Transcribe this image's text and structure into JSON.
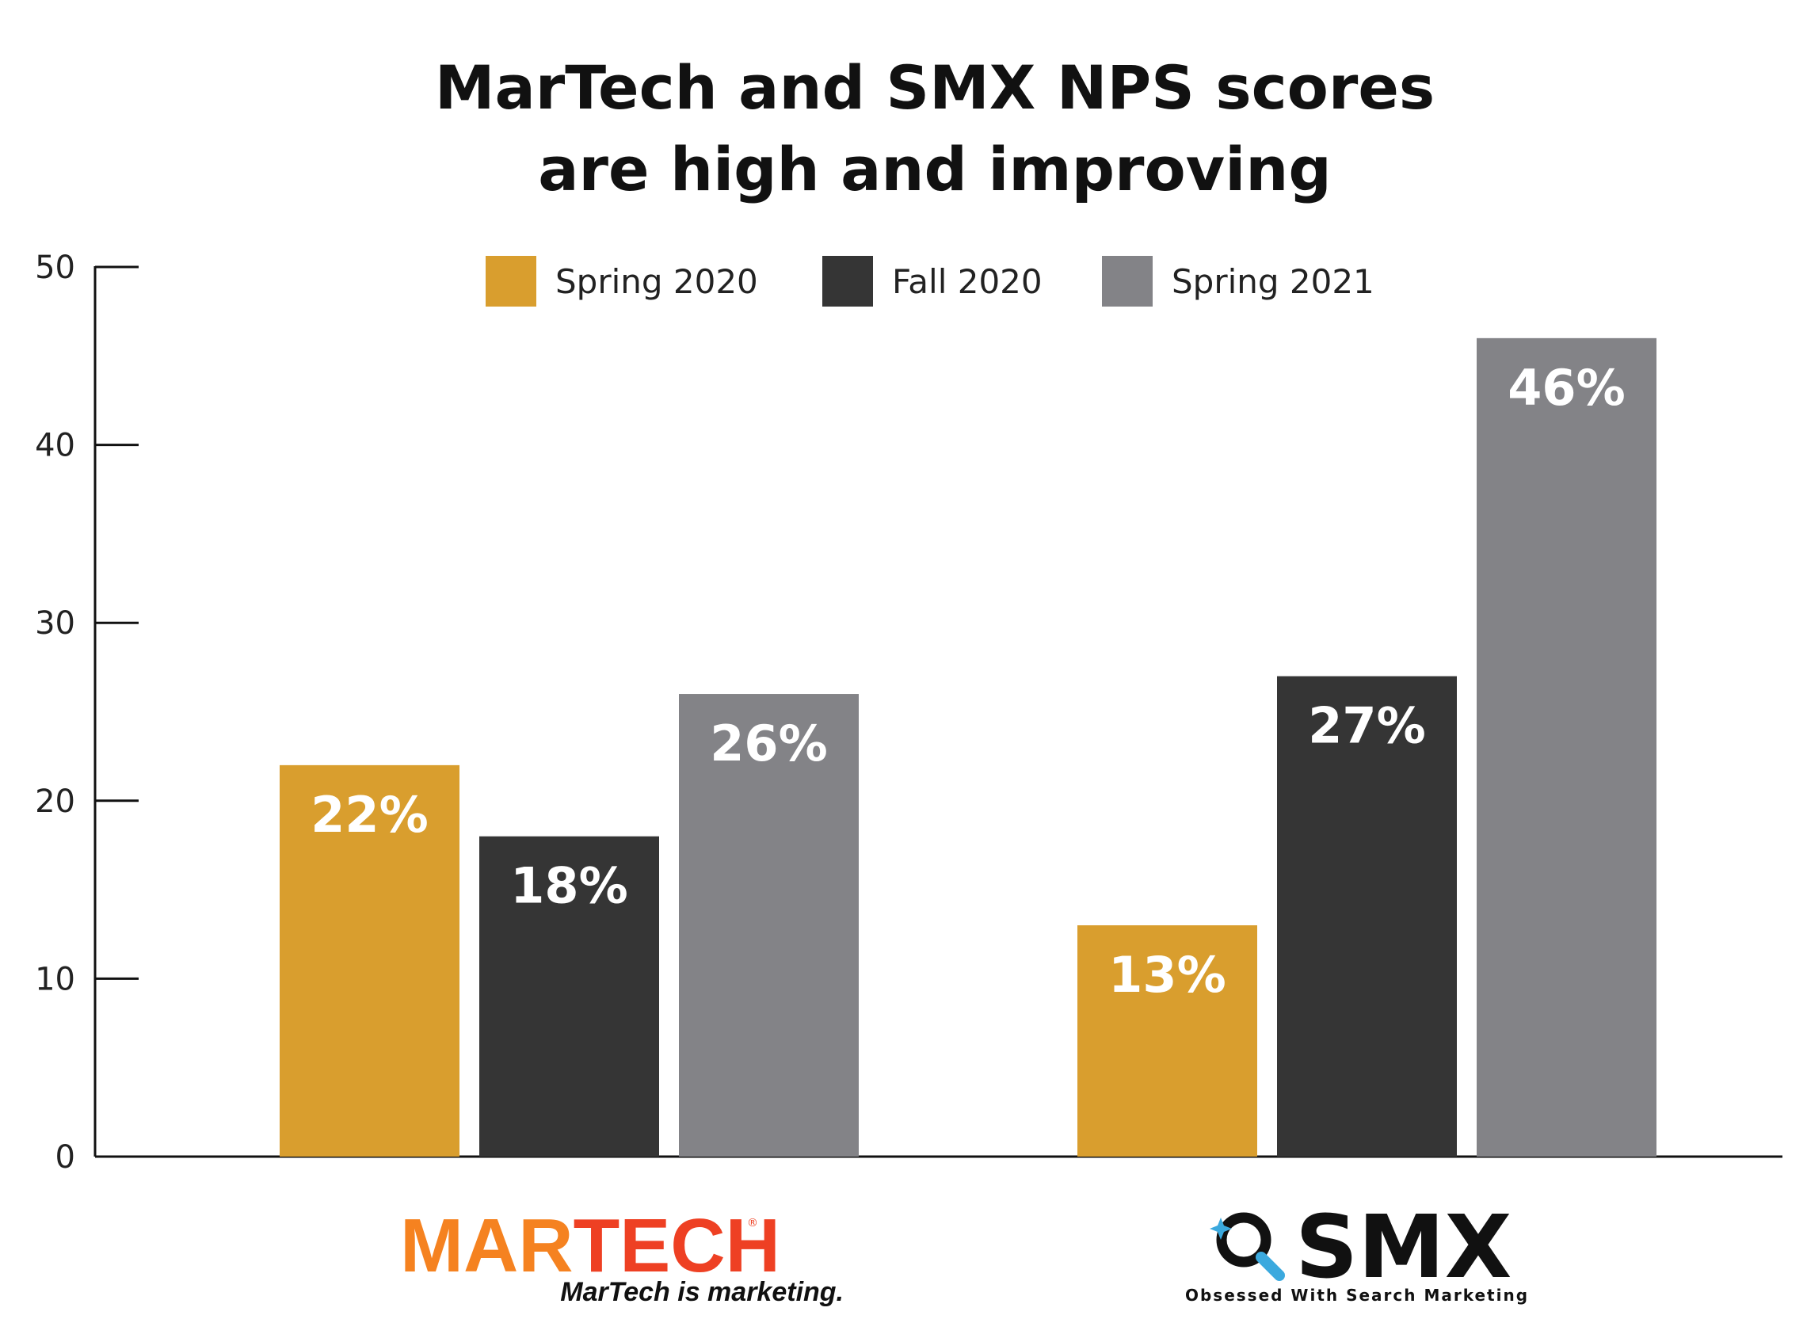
{
  "chart_data": {
    "type": "bar",
    "title_lines": [
      "MarTech and SMX NPS scores",
      "are high and improving"
    ],
    "categories": [
      "MARTECH",
      "SMX"
    ],
    "series": [
      {
        "name": "Spring 2020",
        "color": "#D99E2E",
        "values": [
          22,
          13
        ],
        "labels": [
          "22%",
          "13%"
        ]
      },
      {
        "name": "Fall 2020",
        "color": "#353535",
        "values": [
          18,
          27
        ],
        "labels": [
          "18%",
          "27%"
        ]
      },
      {
        "name": "Spring 2021",
        "color": "#838387",
        "values": [
          26,
          46
        ],
        "labels": [
          "26%",
          "46%"
        ]
      }
    ],
    "ylim": [
      0,
      50
    ],
    "yticks": [
      "0",
      "10",
      "20",
      "30",
      "40",
      "50"
    ],
    "grid": false,
    "legend_position": "top"
  },
  "logos": {
    "martech": {
      "name_part1": "MAR",
      "name_part2": "TECH",
      "registered": "®",
      "tagline": "MarTech is marketing.",
      "color1": "#F58220",
      "color2": "#EE4023"
    },
    "smx": {
      "name": "SMX",
      "tagline": "Obsessed With Search Marketing",
      "icon": "magnifier-icon",
      "accent": "#3BA9DE"
    }
  }
}
